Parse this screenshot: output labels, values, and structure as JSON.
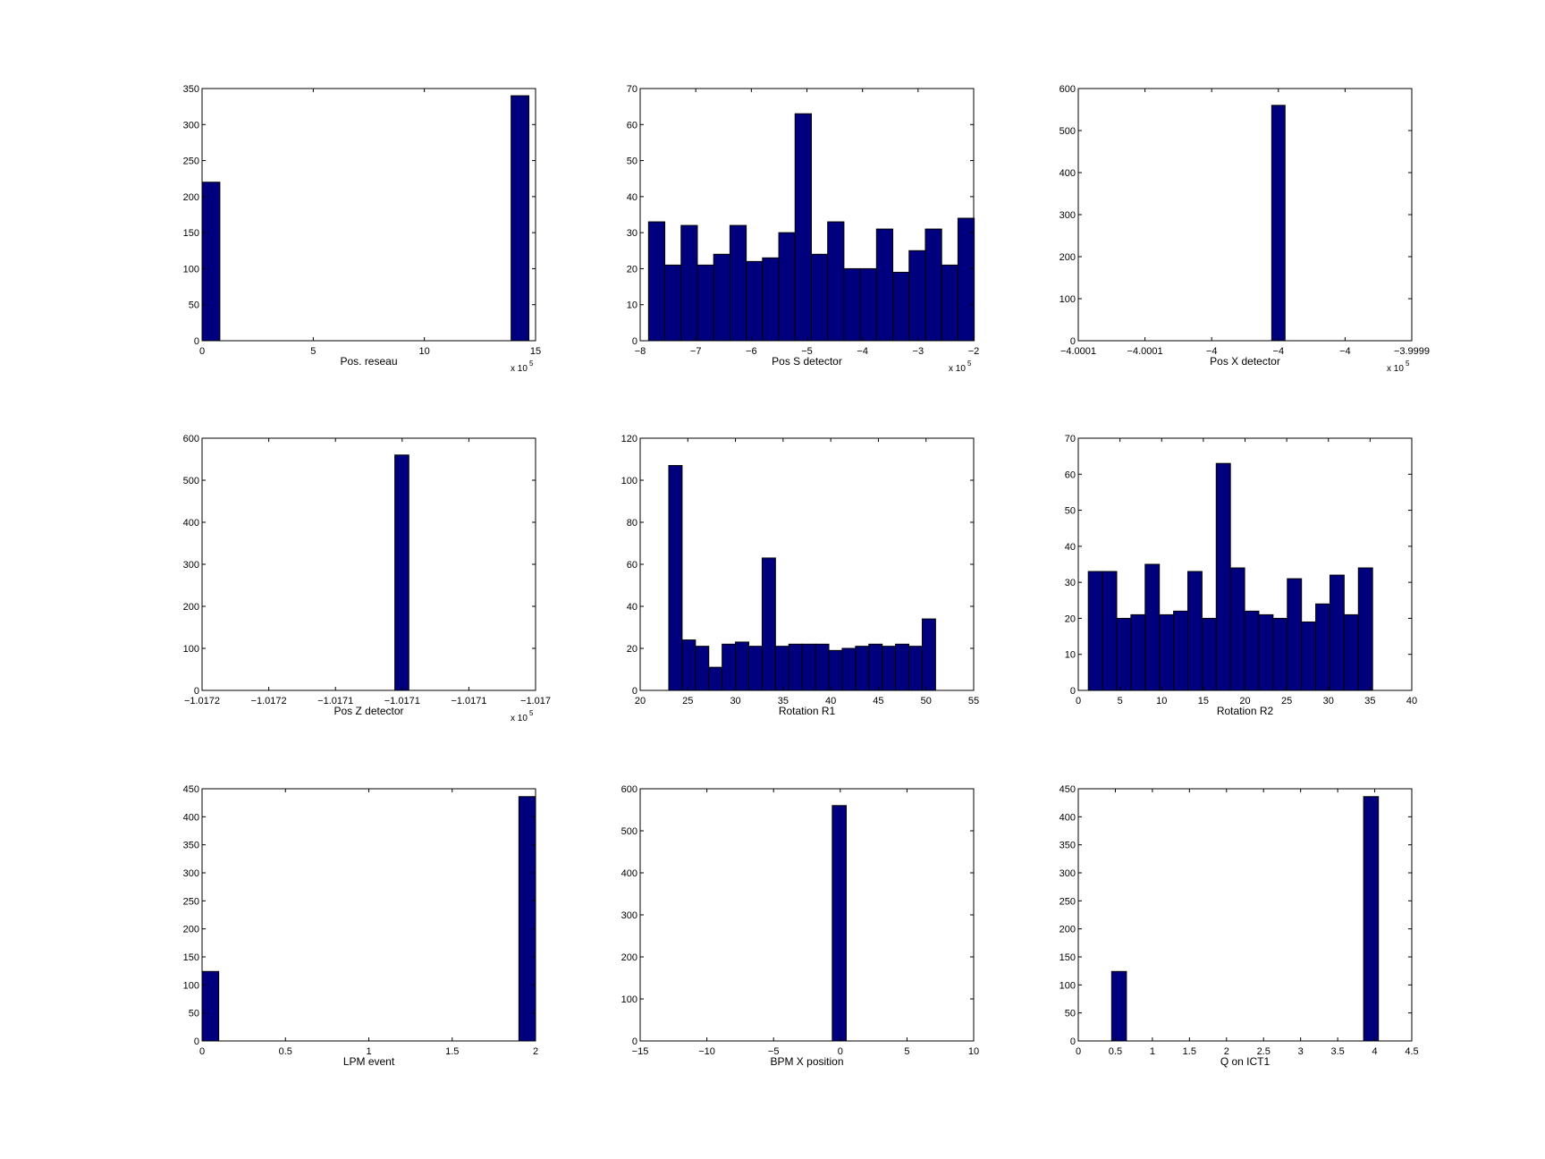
{
  "chart_data": [
    {
      "type": "bar",
      "xlabel": "Pos. reseau",
      "x_exponent": "x 10",
      "x_exponent_power": "5",
      "xlim": [
        0,
        15
      ],
      "ylim": [
        0,
        350
      ],
      "xticks": [
        0,
        5,
        10,
        15
      ],
      "xtick_labels": [
        "0",
        "5",
        "10",
        "15"
      ],
      "yticks": [
        0,
        50,
        100,
        150,
        200,
        250,
        300,
        350
      ],
      "ytick_labels": [
        "0",
        "50",
        "100",
        "150",
        "200",
        "250",
        "300",
        "350"
      ],
      "bins": [
        [
          0.0,
          0.8,
          220
        ],
        [
          13.9,
          14.7,
          340
        ]
      ]
    },
    {
      "type": "bar",
      "xlabel": "Pos S detector",
      "x_exponent": "x 10",
      "x_exponent_power": "5",
      "xlim": [
        -8,
        -2
      ],
      "ylim": [
        0,
        70
      ],
      "xticks": [
        -8,
        -7,
        -6,
        -5,
        -4,
        -3,
        -2
      ],
      "xtick_labels": [
        "−8",
        "−7",
        "−6",
        "−5",
        "−4",
        "−3",
        "−2"
      ],
      "yticks": [
        0,
        10,
        20,
        30,
        40,
        50,
        60,
        70
      ],
      "ytick_labels": [
        "0",
        "10",
        "20",
        "30",
        "40",
        "50",
        "60",
        "70"
      ],
      "bin_start": -7.85,
      "bin_width": 0.293,
      "values": [
        33,
        21,
        32,
        21,
        24,
        32,
        22,
        23,
        30,
        63,
        24,
        33,
        20,
        20,
        31,
        19,
        25,
        31,
        21,
        34
      ]
    },
    {
      "type": "bar",
      "xlabel": "Pos X detector",
      "x_exponent": "x 10",
      "x_exponent_power": "5",
      "xlim": [
        0,
        1
      ],
      "ylim": [
        0,
        600
      ],
      "xticks": [
        0,
        0.2,
        0.4,
        0.6,
        0.8,
        1.0
      ],
      "xtick_labels": [
        "−4.0001",
        "−4.0001",
        "−4",
        "−4",
        "−4",
        "−3.9999"
      ],
      "yticks": [
        0,
        100,
        200,
        300,
        400,
        500,
        600
      ],
      "ytick_labels": [
        "0",
        "100",
        "200",
        "300",
        "400",
        "500",
        "600"
      ],
      "bins": [
        [
          0.58,
          0.62,
          560
        ]
      ]
    },
    {
      "type": "bar",
      "xlabel": "Pos Z detector",
      "x_exponent": "x 10",
      "x_exponent_power": "5",
      "xlim": [
        0,
        1
      ],
      "ylim": [
        0,
        600
      ],
      "xticks": [
        0,
        0.2,
        0.4,
        0.6,
        0.8,
        1.0
      ],
      "xtick_labels": [
        "−1.0172",
        "−1.0172",
        "−1.0171",
        "−1.0171",
        "−1.0171",
        "−1.017"
      ],
      "yticks": [
        0,
        100,
        200,
        300,
        400,
        500,
        600
      ],
      "ytick_labels": [
        "0",
        "100",
        "200",
        "300",
        "400",
        "500",
        "600"
      ],
      "bins": [
        [
          0.578,
          0.62,
          560
        ]
      ]
    },
    {
      "type": "bar",
      "xlabel": "Rotation R1",
      "xlim": [
        20,
        55
      ],
      "ylim": [
        0,
        120
      ],
      "xticks": [
        20,
        25,
        30,
        35,
        40,
        45,
        50,
        55
      ],
      "xtick_labels": [
        "20",
        "25",
        "30",
        "35",
        "40",
        "45",
        "50",
        "55"
      ],
      "yticks": [
        0,
        20,
        40,
        60,
        80,
        100,
        120
      ],
      "ytick_labels": [
        "0",
        "20",
        "40",
        "60",
        "80",
        "100",
        "120"
      ],
      "bin_start": 23.0,
      "bin_width": 1.4,
      "values": [
        107,
        24,
        21,
        11,
        22,
        23,
        21,
        63,
        21,
        22,
        22,
        22,
        19,
        20,
        21,
        22,
        21,
        22,
        21,
        34
      ]
    },
    {
      "type": "bar",
      "xlabel": "Rotation R2",
      "xlim": [
        0,
        40
      ],
      "ylim": [
        0,
        70
      ],
      "xticks": [
        0,
        5,
        10,
        15,
        20,
        25,
        30,
        35,
        40
      ],
      "xtick_labels": [
        "0",
        "5",
        "10",
        "15",
        "20",
        "25",
        "30",
        "35",
        "40"
      ],
      "yticks": [
        0,
        10,
        20,
        30,
        40,
        50,
        60,
        70
      ],
      "ytick_labels": [
        "0",
        "10",
        "20",
        "30",
        "40",
        "50",
        "60",
        "70"
      ],
      "bin_start": 1.2,
      "bin_width": 1.705,
      "values": [
        33,
        33,
        20,
        21,
        35,
        21,
        22,
        33,
        20,
        63,
        34,
        22,
        21,
        20,
        31,
        19,
        24,
        32,
        21,
        34
      ]
    },
    {
      "type": "bar",
      "xlabel": "LPM event",
      "xlim": [
        0,
        2
      ],
      "ylim": [
        0,
        450
      ],
      "xticks": [
        0,
        0.5,
        1,
        1.5,
        2
      ],
      "xtick_labels": [
        "0",
        "0.5",
        "1",
        "1.5",
        "2"
      ],
      "yticks": [
        0,
        50,
        100,
        150,
        200,
        250,
        300,
        350,
        400,
        450
      ],
      "ytick_labels": [
        "0",
        "50",
        "100",
        "150",
        "200",
        "250",
        "300",
        "350",
        "400",
        "450"
      ],
      "bins": [
        [
          0.0,
          0.1,
          124
        ],
        [
          1.9,
          2.0,
          436
        ]
      ]
    },
    {
      "type": "bar",
      "xlabel": "BPM X position",
      "xlim": [
        -15,
        10
      ],
      "ylim": [
        0,
        600
      ],
      "xticks": [
        -15,
        -10,
        -5,
        0,
        5,
        10
      ],
      "xtick_labels": [
        "−15",
        "−10",
        "−5",
        "0",
        "5",
        "10"
      ],
      "yticks": [
        0,
        100,
        200,
        300,
        400,
        500,
        600
      ],
      "ytick_labels": [
        "0",
        "100",
        "200",
        "300",
        "400",
        "500",
        "600"
      ],
      "bins": [
        [
          -0.6,
          0.45,
          560
        ]
      ]
    },
    {
      "type": "bar",
      "xlabel": "Q on ICT1",
      "xlim": [
        0,
        4.5
      ],
      "ylim": [
        0,
        450
      ],
      "xticks": [
        0,
        0.5,
        1,
        1.5,
        2,
        2.5,
        3,
        3.5,
        4,
        4.5
      ],
      "xtick_labels": [
        "0",
        "0.5",
        "1",
        "1.5",
        "2",
        "2.5",
        "3",
        "3.5",
        "4",
        "4.5"
      ],
      "yticks": [
        0,
        50,
        100,
        150,
        200,
        250,
        300,
        350,
        400,
        450
      ],
      "ytick_labels": [
        "0",
        "50",
        "100",
        "150",
        "200",
        "250",
        "300",
        "350",
        "400",
        "450"
      ],
      "bins": [
        [
          0.45,
          0.65,
          124
        ],
        [
          3.85,
          4.05,
          436
        ]
      ]
    }
  ],
  "colors": {
    "bar_fill": "#00007f",
    "bar_edge": "#000000",
    "axes_background": "#ffffff"
  }
}
